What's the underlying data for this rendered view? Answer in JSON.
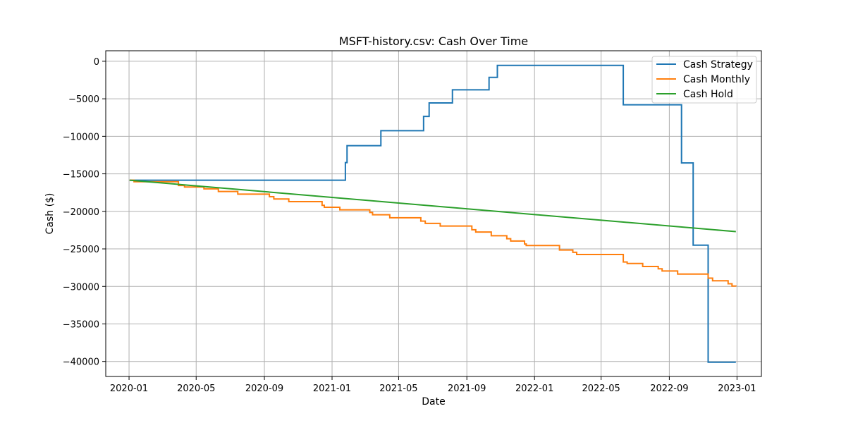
{
  "chart_data": {
    "type": "line",
    "title": "MSFT-history.csv: Cash Over Time",
    "xlabel": "Date",
    "ylabel": "Cash ($)",
    "x_ticks": [
      "2020-01",
      "2020-05",
      "2020-09",
      "2021-01",
      "2021-05",
      "2021-09",
      "2022-01",
      "2022-05",
      "2022-09",
      "2023-01"
    ],
    "y_ticks": [
      0,
      -5000,
      -10000,
      -15000,
      -20000,
      -25000,
      -30000,
      -35000,
      -40000
    ],
    "xlim": [
      "2019-11-20",
      "2023-02-14"
    ],
    "ylim": [
      -42000,
      1400
    ],
    "grid": true,
    "legend_position": "top-right",
    "series": [
      {
        "name": "Cash Strategy",
        "color": "#1f77b4",
        "step": true,
        "points": [
          [
            "2020-01-02",
            -15850
          ],
          [
            "2021-01-25",
            -13500
          ],
          [
            "2021-01-28",
            -11250
          ],
          [
            "2021-03-30",
            -9250
          ],
          [
            "2021-06-15",
            -7350
          ],
          [
            "2021-06-25",
            -5550
          ],
          [
            "2021-08-06",
            -3800
          ],
          [
            "2021-10-11",
            -2150
          ],
          [
            "2021-10-26",
            -550
          ],
          [
            "2022-06-10",
            -5800
          ],
          [
            "2022-09-23",
            -13550
          ],
          [
            "2022-10-14",
            -24500
          ],
          [
            "2022-11-10",
            -40100
          ],
          [
            "2022-12-30",
            -40100
          ]
        ]
      },
      {
        "name": "Cash Monthly",
        "color": "#ff7f0e",
        "step": true,
        "start": [
          "2020-01-02",
          -15850
        ],
        "steps": [
          [
            "2020-01-10",
            -16050
          ],
          [
            "2020-03-30",
            -16550
          ],
          [
            "2020-04-10",
            -16750
          ],
          [
            "2020-05-15",
            -17000
          ],
          [
            "2020-06-10",
            -17350
          ],
          [
            "2020-07-15",
            -17700
          ],
          [
            "2020-09-10",
            -18050
          ],
          [
            "2020-09-18",
            -18350
          ],
          [
            "2020-10-15",
            -18700
          ],
          [
            "2020-12-14",
            -19200
          ],
          [
            "2020-12-18",
            -19450
          ],
          [
            "2021-01-15",
            -19800
          ],
          [
            "2021-03-10",
            -20150
          ],
          [
            "2021-03-15",
            -20450
          ],
          [
            "2021-04-15",
            -20850
          ],
          [
            "2021-06-10",
            -21300
          ],
          [
            "2021-06-18",
            -21600
          ],
          [
            "2021-07-15",
            -21950
          ],
          [
            "2021-09-10",
            -22450
          ],
          [
            "2021-09-17",
            -22750
          ],
          [
            "2021-10-15",
            -23250
          ],
          [
            "2021-11-12",
            -23650
          ],
          [
            "2021-11-19",
            -23950
          ],
          [
            "2021-12-14",
            -24350
          ],
          [
            "2021-12-17",
            -24550
          ],
          [
            "2022-02-15",
            -25150
          ],
          [
            "2022-03-11",
            -25450
          ],
          [
            "2022-03-18",
            -25750
          ],
          [
            "2022-06-10",
            -26750
          ],
          [
            "2022-06-17",
            -26950
          ],
          [
            "2022-07-15",
            -27350
          ],
          [
            "2022-08-12",
            -27650
          ],
          [
            "2022-08-19",
            -27950
          ],
          [
            "2022-09-16",
            -28350
          ],
          [
            "2022-11-10",
            -28900
          ],
          [
            "2022-11-18",
            -29250
          ],
          [
            "2022-12-16",
            -29650
          ],
          [
            "2022-12-23",
            -29950
          ]
        ],
        "end": [
          "2022-12-30",
          -30000
        ]
      },
      {
        "name": "Cash Hold",
        "color": "#2ca02c",
        "step": false,
        "points": [
          [
            "2020-01-02",
            -15850
          ],
          [
            "2022-12-30",
            -22700
          ]
        ]
      }
    ]
  }
}
